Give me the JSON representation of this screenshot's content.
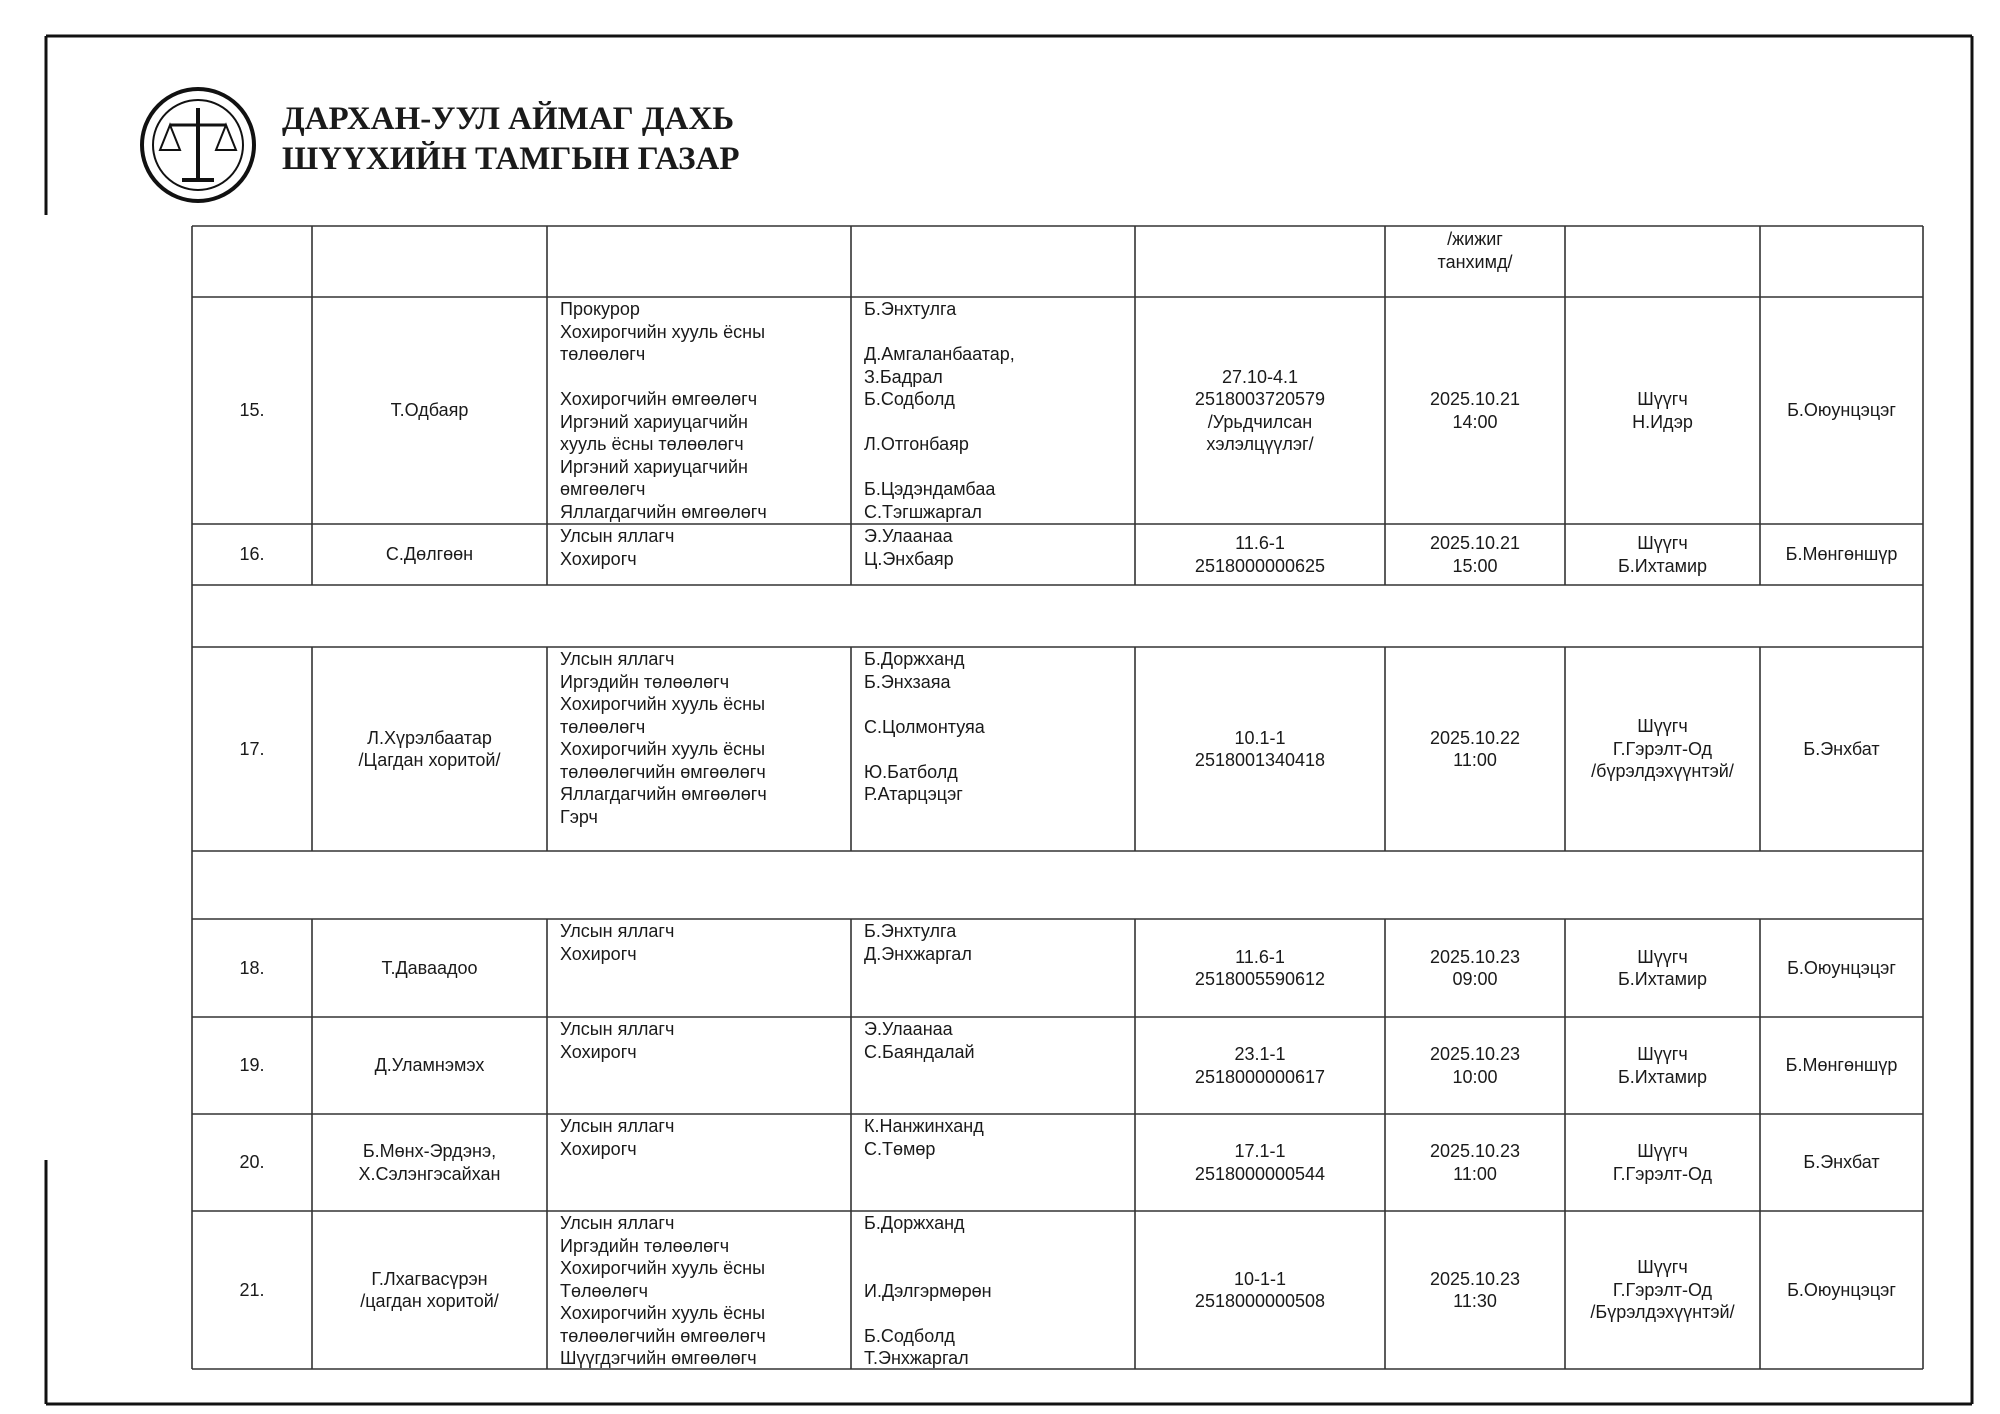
{
  "header": {
    "title_lines": [
      "ДАРХАН-УУЛ АЙМАГ ДАХЬ",
      "ШҮҮХИЙН ТАМГЫН ГАЗАР"
    ]
  },
  "table": {
    "continued_row": {
      "datetime": [
        "/жижиг",
        "танхимд/"
      ]
    },
    "rows": [
      {
        "number": "15.",
        "defendant": [
          "Т.Одбаяр"
        ],
        "roles": [
          "Прокурор",
          "Хохирогчийн хууль ёсны",
          "төлөөлөгч",
          "Хохирогчийн өмгөөлөгч",
          "Иргэний хариуцагчийн",
          "хууль ёсны төлөөлөгч",
          "Иргэний хариуцагчийн",
          "өмгөөлөгч",
          "Яллагдагчийн өмгөөлөгч"
        ],
        "participants": [
          "Б.Энхтулга",
          "Д.Амгаланбаатар,",
          "З.Бадрал",
          "Б.Содболд",
          "Л.Отгонбаяр",
          "Б.Цэдэндамбаа",
          "С.Тэгшжаргал"
        ],
        "case": [
          "27.10-4.1",
          "2518003720579",
          "/Урьдчилсан",
          "хэлэлцүүлэг/"
        ],
        "datetime": [
          "2025.10.21",
          "14:00"
        ],
        "judge": [
          "Шүүгч",
          "Н.Идэр"
        ],
        "secretary": [
          "Б.Оюунцэцэг"
        ]
      },
      {
        "number": "16.",
        "defendant": [
          "С.Дөлгөөн"
        ],
        "roles": [
          "Улсын яллагч",
          "Хохирогч"
        ],
        "participants": [
          "Э.Улаанаа",
          "Ц.Энхбаяр"
        ],
        "case": [
          "11.6-1",
          "2518000000625"
        ],
        "datetime": [
          "2025.10.21",
          "15:00"
        ],
        "judge": [
          "Шүүгч",
          "Б.Ихтамир"
        ],
        "secretary": [
          "Б.Мөнгөншүр"
        ]
      },
      {
        "number": "17.",
        "defendant": [
          "Л.Хүрэлбаатар",
          "/Цагдан хоритой/"
        ],
        "roles": [
          "Улсын яллагч",
          "Иргэдийн төлөөлөгч",
          "Хохирогчийн хууль ёсны",
          "төлөөлөгч",
          "Хохирогчийн хууль ёсны",
          "төлөөлөгчийн өмгөөлөгч",
          "Яллагдагчийн өмгөөлөгч",
          "Гэрч"
        ],
        "participants": [
          "Б.Доржханд",
          "Б.Энхзаяа",
          "С.Цолмонтуяа",
          "Ю.Батболд",
          "Р.Атарцэцэг"
        ],
        "case": [
          "10.1-1",
          "2518001340418"
        ],
        "datetime": [
          "2025.10.22",
          "11:00"
        ],
        "judge": [
          "Шүүгч",
          "Г.Гэрэлт-Од",
          "/бүрэлдэхүүнтэй/"
        ],
        "secretary": [
          "Б.Энхбат"
        ]
      },
      {
        "number": "18.",
        "defendant": [
          "Т.Даваадоо"
        ],
        "roles": [
          "Улсын яллагч",
          "Хохирогч"
        ],
        "participants": [
          "Б.Энхтулга",
          "Д.Энхжаргал"
        ],
        "case": [
          "11.6-1",
          "2518005590612"
        ],
        "datetime": [
          "2025.10.23",
          "09:00"
        ],
        "judge": [
          "Шүүгч",
          "Б.Ихтамир"
        ],
        "secretary": [
          "Б.Оюунцэцэг"
        ]
      },
      {
        "number": "19.",
        "defendant": [
          "Д.Уламнэмэх"
        ],
        "roles": [
          "Улсын яллагч",
          "Хохирогч"
        ],
        "participants": [
          "Э.Улаанаа",
          "С.Баяндалай"
        ],
        "case": [
          "23.1-1",
          "2518000000617"
        ],
        "datetime": [
          "2025.10.23",
          "10:00"
        ],
        "judge": [
          "Шүүгч",
          "Б.Ихтамир"
        ],
        "secretary": [
          "Б.Мөнгөншүр"
        ]
      },
      {
        "number": "20.",
        "defendant": [
          "Б.Мөнх-Эрдэнэ,",
          "Х.Сэлэнгэсайхан"
        ],
        "roles": [
          "Улсын яллагч",
          "Хохирогч"
        ],
        "participants": [
          "К.Нанжинханд",
          "С.Төмөр"
        ],
        "case": [
          "17.1-1",
          "2518000000544"
        ],
        "datetime": [
          "2025.10.23",
          "11:00"
        ],
        "judge": [
          "Шүүгч",
          "Г.Гэрэлт-Од"
        ],
        "secretary": [
          "Б.Энхбат"
        ]
      },
      {
        "number": "21.",
        "defendant": [
          "Г.Лхагвасүрэн",
          "/цагдан хоритой/"
        ],
        "roles": [
          "Улсын яллагч",
          "Иргэдийн төлөөлөгч",
          "Хохирогчийн хууль ёсны",
          "Төлөөлөгч",
          "Хохирогчийн хууль ёсны",
          "төлөөлөгчийн өмгөөлөгч",
          "Шүүгдэгчийн өмгөөлөгч"
        ],
        "participants": [
          "Б.Доржханд",
          "И.Дэлгэрмөрөн",
          "Б.Содболд",
          "Т.Энхжаргал"
        ],
        "case": [
          "10-1-1",
          "2518000000508"
        ],
        "datetime": [
          "2025.10.23",
          "11:30"
        ],
        "judge": [
          "Шүүгч",
          "Г.Гэрэлт-Од",
          "/Бүрэлдэхүүнтэй/"
        ],
        "secretary": [
          "Б.Оюунцэцэг"
        ]
      }
    ]
  }
}
